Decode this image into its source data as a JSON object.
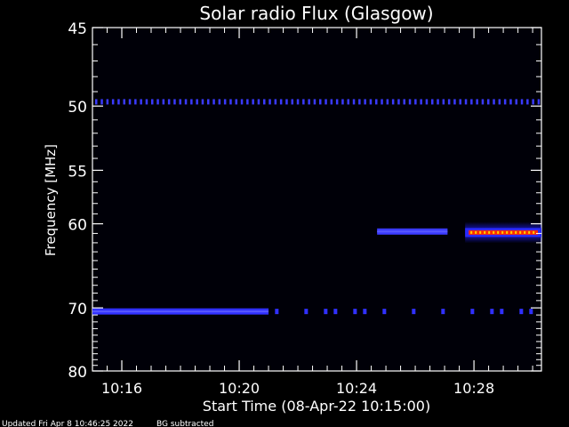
{
  "chart_data": {
    "type": "heatmap",
    "title": "Solar radio Flux (Glasgow)",
    "xlabel": "Start Time (08-Apr-22 10:15:00)",
    "ylabel": "Frequency [MHz]",
    "x_ticks": [
      {
        "label": "10:16",
        "minutes": 1.0
      },
      {
        "label": "10:20",
        "minutes": 5.0
      },
      {
        "label": "10:24",
        "minutes": 9.0
      },
      {
        "label": "10:28",
        "minutes": 13.0
      }
    ],
    "xlim_minutes": [
      0,
      15.3
    ],
    "y_ticks": [
      45,
      50,
      55,
      60,
      70,
      80
    ],
    "ylim": [
      45,
      80
    ],
    "y_scale": "reciprocal",
    "bands": [
      {
        "name": "",
        "freq_mhz": 49.7,
        "start_min": 0.0,
        "end_min": 15.3,
        "style": "dashed",
        "intensity": "medium",
        "color": "#3a3aff"
      },
      {
        "name": "",
        "freq_mhz": 70.5,
        "start_min": 0.0,
        "end_min": 6.0,
        "style": "solid",
        "intensity": "medium",
        "color": "#3030ff"
      },
      {
        "name": "",
        "freq_mhz": 70.5,
        "start_min": 6.1,
        "end_min": 15.3,
        "style": "dots",
        "intensity": "medium",
        "color": "#3030ff"
      },
      {
        "name": "",
        "freq_mhz": 60.8,
        "start_min": 9.7,
        "end_min": 12.1,
        "style": "solid",
        "intensity": "medium",
        "color": "#3a3aff"
      },
      {
        "name": "",
        "freq_mhz": 60.9,
        "start_min": 12.7,
        "end_min": 15.3,
        "style": "solid",
        "intensity": "high",
        "color": "#ff2a00"
      }
    ]
  },
  "footer": {
    "updated": "Updated Fri Apr  8 10:46:25 2022",
    "note": "BG subtracted"
  }
}
